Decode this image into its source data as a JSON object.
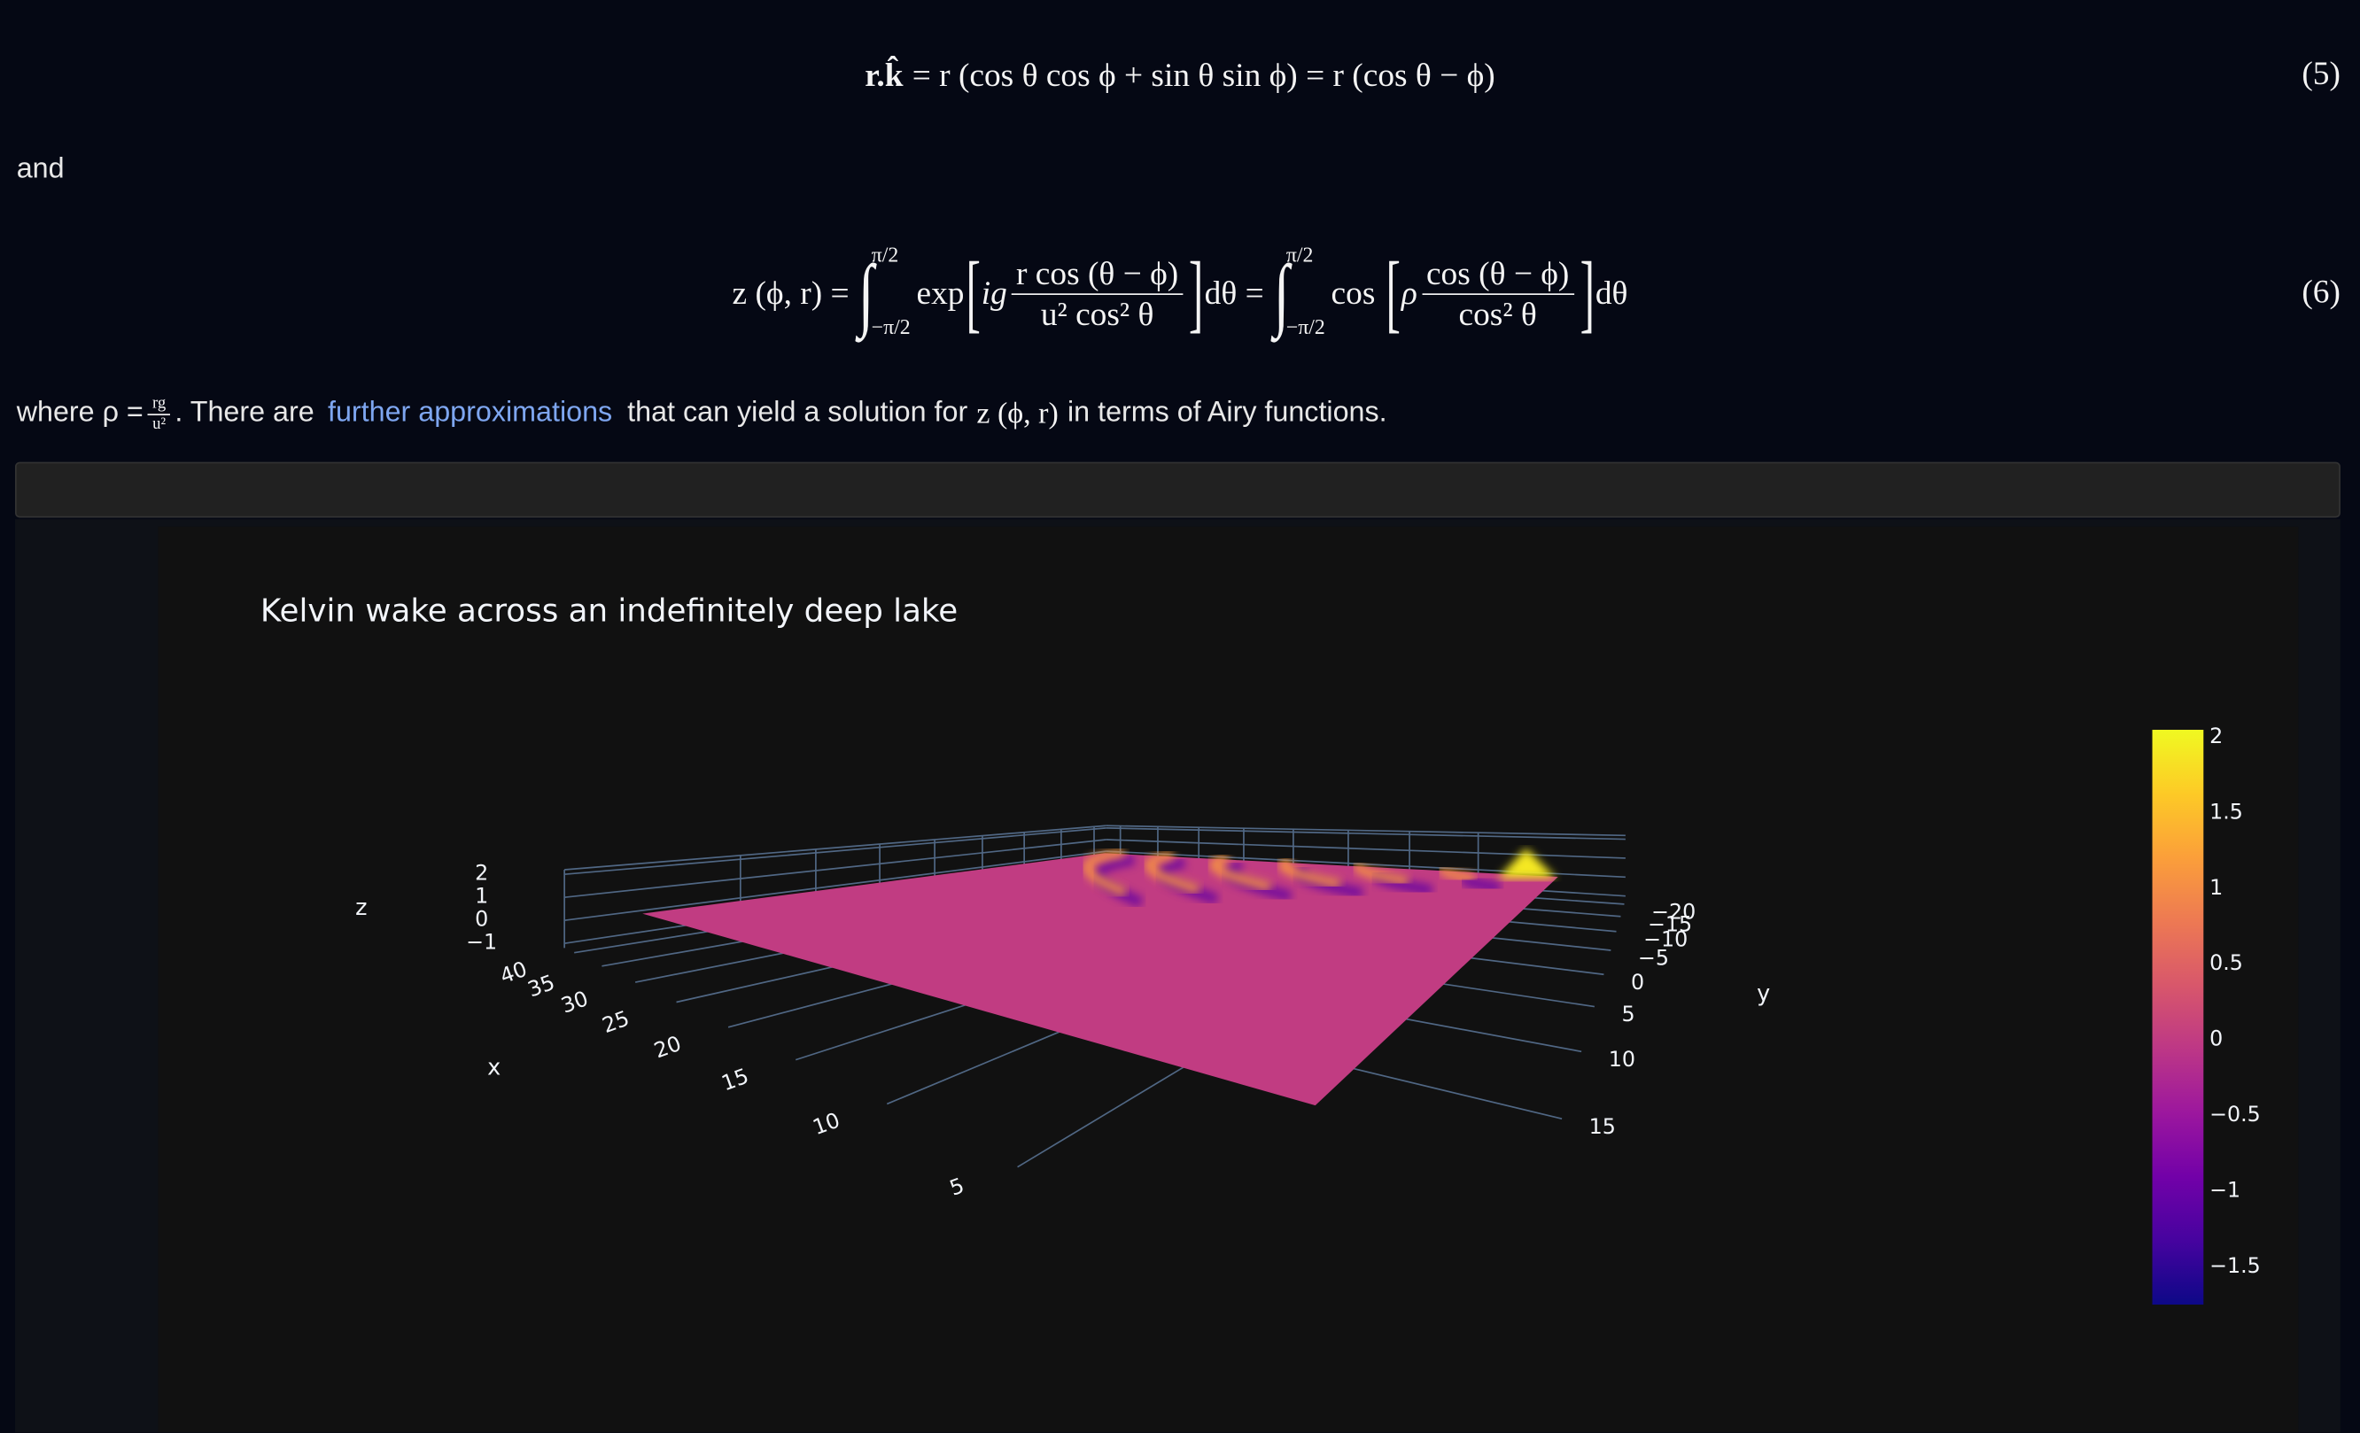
{
  "eq5": {
    "lhs": "r.k̂",
    "rhs": "= r (cos θ cos ϕ + sin θ sin ϕ) = r (cos θ − ϕ)",
    "number": "(5)"
  },
  "and_text": "and",
  "eq6": {
    "lhs": "z (ϕ, r) =",
    "int1": {
      "sign": "∫",
      "upper": "π/2",
      "lower": "−π/2"
    },
    "exp": "exp",
    "open1": "[",
    "ig": "ig",
    "frac1": {
      "num": "r cos (θ − ϕ)",
      "den": "u² cos² θ"
    },
    "close1": "]",
    "mid": "dθ =",
    "int2": {
      "sign": "∫",
      "upper": "π/2",
      "lower": "−π/2"
    },
    "cos": "cos",
    "open2": "[",
    "rho": "ρ",
    "frac2": {
      "num": "cos (θ − ϕ)",
      "den": "cos² θ"
    },
    "close2": "]",
    "end": "dθ",
    "number": "(6)"
  },
  "paragraph": {
    "pre": "where ρ =",
    "frac": {
      "num": "rg",
      "den": "u²"
    },
    "mid": ". There are",
    "link": "further approximations",
    "post": "that can yield a solution for",
    "math": "z (ϕ, r)",
    "end": "in terms of Airy functions."
  },
  "chart_data": {
    "type": "surface",
    "title": "Kelvin wake across an indefinitely deep lake",
    "x_label": "x",
    "y_label": "y",
    "z_label": "z",
    "xlim": [
      -4,
      42
    ],
    "xticks": [
      5,
      10,
      15,
      20,
      25,
      30,
      35,
      40
    ],
    "ylim": [
      -22,
      24
    ],
    "yticks": [
      {
        "value": -20,
        "label": "−20"
      },
      {
        "value": -15,
        "label": "−15"
      },
      {
        "value": -10,
        "label": "−10"
      },
      {
        "value": -5,
        "label": "−5"
      },
      0,
      5,
      10,
      15
    ],
    "zlim": [
      -1.2,
      2.2
    ],
    "zticks": [
      {
        "value": -1,
        "label": "−1"
      },
      0,
      1,
      2
    ],
    "colorbar": {
      "range": [
        -1.75,
        2.05
      ],
      "ticks": [
        {
          "value": -1.5,
          "label": "−1.5"
        },
        {
          "value": -1,
          "label": "−1"
        },
        {
          "value": -0.5,
          "label": "−0.5"
        },
        0,
        0.5,
        1,
        1.5,
        2
      ]
    },
    "colorscale": [
      "#0d0887",
      "#46039f",
      "#7201a8",
      "#9c179e",
      "#bd3786",
      "#d8576b",
      "#ed7953",
      "#fb9f3a",
      "#fdca26",
      "#f0f921"
    ],
    "grid_color": "#506784",
    "font_color": "#f2f5fa"
  }
}
